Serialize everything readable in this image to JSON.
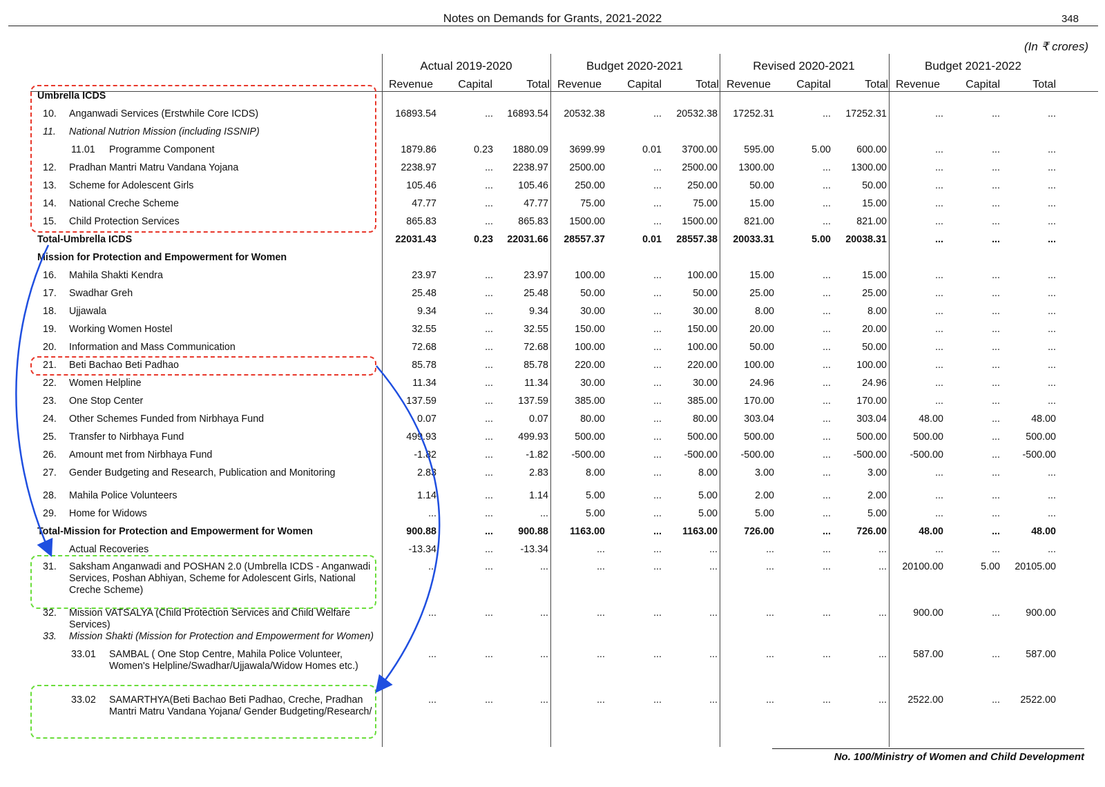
{
  "header": {
    "title": "Notes on Demands for Grants, 2021-2022",
    "page_number": "348",
    "units": "(In ₹ crores)"
  },
  "column_groups": [
    "Actual 2019-2020",
    "Budget 2020-2021",
    "Revised 2020-2021",
    "Budget 2021-2022"
  ],
  "sub_headers": [
    "Revenue",
    "Capital",
    "Total"
  ],
  "rows": [
    {
      "type": "section",
      "label": "Umbrella ICDS",
      "values": []
    },
    {
      "type": "item",
      "num": "10.",
      "label": "Anganwadi Services (Erstwhile Core ICDS)",
      "values": [
        "16893.54",
        "...",
        "16893.54",
        "20532.38",
        "...",
        "20532.38",
        "17252.31",
        "...",
        "17252.31",
        "...",
        "...",
        "..."
      ]
    },
    {
      "type": "item italic",
      "num": "11.",
      "label": "National Nutrion Mission (including ISSNIP)",
      "values": []
    },
    {
      "type": "sub",
      "num": "11.01",
      "label": "Programme Component",
      "values": [
        "1879.86",
        "0.23",
        "1880.09",
        "3699.99",
        "0.01",
        "3700.00",
        "595.00",
        "5.00",
        "600.00",
        "...",
        "...",
        "..."
      ]
    },
    {
      "type": "item",
      "num": "12.",
      "label": "Pradhan Mantri Matru Vandana Yojana",
      "values": [
        "2238.97",
        "...",
        "2238.97",
        "2500.00",
        "...",
        "2500.00",
        "1300.00",
        "...",
        "1300.00",
        "...",
        "...",
        "..."
      ]
    },
    {
      "type": "item",
      "num": "13.",
      "label": "Scheme for Adolescent Girls",
      "values": [
        "105.46",
        "...",
        "105.46",
        "250.00",
        "...",
        "250.00",
        "50.00",
        "...",
        "50.00",
        "...",
        "...",
        "..."
      ]
    },
    {
      "type": "item",
      "num": "14.",
      "label": "National Creche Scheme",
      "values": [
        "47.77",
        "...",
        "47.77",
        "75.00",
        "...",
        "75.00",
        "15.00",
        "...",
        "15.00",
        "...",
        "...",
        "..."
      ]
    },
    {
      "type": "item",
      "num": "15.",
      "label": "Child Protection Services",
      "values": [
        "865.83",
        "...",
        "865.83",
        "1500.00",
        "...",
        "1500.00",
        "821.00",
        "...",
        "821.00",
        "...",
        "...",
        "..."
      ]
    },
    {
      "type": "total",
      "label": "Total-Umbrella ICDS",
      "values": [
        "22031.43",
        "0.23",
        "22031.66",
        "28557.37",
        "0.01",
        "28557.38",
        "20033.31",
        "5.00",
        "20038.31",
        "...",
        "...",
        "..."
      ]
    },
    {
      "type": "section",
      "label": "Mission for Protection and Empowerment  for Women",
      "values": []
    },
    {
      "type": "item",
      "num": "16.",
      "label": "Mahila Shakti Kendra",
      "values": [
        "23.97",
        "...",
        "23.97",
        "100.00",
        "...",
        "100.00",
        "15.00",
        "...",
        "15.00",
        "...",
        "...",
        "..."
      ]
    },
    {
      "type": "item",
      "num": "17.",
      "label": "Swadhar Greh",
      "values": [
        "25.48",
        "...",
        "25.48",
        "50.00",
        "...",
        "50.00",
        "25.00",
        "...",
        "25.00",
        "...",
        "...",
        "..."
      ]
    },
    {
      "type": "item",
      "num": "18.",
      "label": "Ujjawala",
      "values": [
        "9.34",
        "...",
        "9.34",
        "30.00",
        "...",
        "30.00",
        "8.00",
        "...",
        "8.00",
        "...",
        "...",
        "..."
      ]
    },
    {
      "type": "item",
      "num": "19.",
      "label": "Working Women Hostel",
      "values": [
        "32.55",
        "...",
        "32.55",
        "150.00",
        "...",
        "150.00",
        "20.00",
        "...",
        "20.00",
        "...",
        "...",
        "..."
      ]
    },
    {
      "type": "item",
      "num": "20.",
      "label": "Information and Mass Communication",
      "values": [
        "72.68",
        "...",
        "72.68",
        "100.00",
        "...",
        "100.00",
        "50.00",
        "...",
        "50.00",
        "...",
        "...",
        "..."
      ]
    },
    {
      "type": "item",
      "num": "21.",
      "label": "Beti Bachao Beti Padhao",
      "values": [
        "85.78",
        "...",
        "85.78",
        "220.00",
        "...",
        "220.00",
        "100.00",
        "...",
        "100.00",
        "...",
        "...",
        "..."
      ]
    },
    {
      "type": "item",
      "num": "22.",
      "label": "Women Helpline",
      "values": [
        "11.34",
        "...",
        "11.34",
        "30.00",
        "...",
        "30.00",
        "24.96",
        "...",
        "24.96",
        "...",
        "...",
        "..."
      ]
    },
    {
      "type": "item",
      "num": "23.",
      "label": "One Stop Center",
      "values": [
        "137.59",
        "...",
        "137.59",
        "385.00",
        "...",
        "385.00",
        "170.00",
        "...",
        "170.00",
        "...",
        "...",
        "..."
      ]
    },
    {
      "type": "item",
      "num": "24.",
      "label": "Other Schemes Funded from Nirbhaya Fund",
      "values": [
        "0.07",
        "...",
        "0.07",
        "80.00",
        "...",
        "80.00",
        "303.04",
        "...",
        "303.04",
        "48.00",
        "...",
        "48.00"
      ]
    },
    {
      "type": "item",
      "num": "25.",
      "label": "Transfer to Nirbhaya Fund",
      "values": [
        "499.93",
        "...",
        "499.93",
        "500.00",
        "...",
        "500.00",
        "500.00",
        "...",
        "500.00",
        "500.00",
        "...",
        "500.00"
      ]
    },
    {
      "type": "item",
      "num": "26.",
      "label": "Amount met from Nirbhaya Fund",
      "values": [
        "-1.82",
        "...",
        "-1.82",
        "-500.00",
        "...",
        "-500.00",
        "-500.00",
        "...",
        "-500.00",
        "-500.00",
        "...",
        "-500.00"
      ]
    },
    {
      "type": "item",
      "num": "27.",
      "label": "Gender Budgeting and Research, Publication and Monitoring",
      "values": [
        "2.83",
        "...",
        "2.83",
        "8.00",
        "...",
        "8.00",
        "3.00",
        "...",
        "3.00",
        "...",
        "...",
        "..."
      ]
    },
    {
      "type": "item",
      "num": "28.",
      "label": "Mahila Police Volunteers",
      "values": [
        "1.14",
        "...",
        "1.14",
        "5.00",
        "...",
        "5.00",
        "2.00",
        "...",
        "2.00",
        "...",
        "...",
        "..."
      ]
    },
    {
      "type": "item",
      "num": "29.",
      "label": "Home for Widows",
      "values": [
        "...",
        "...",
        "...",
        "5.00",
        "...",
        "5.00",
        "5.00",
        "...",
        "5.00",
        "...",
        "...",
        "..."
      ]
    },
    {
      "type": "total",
      "label": "Total-Mission for Protection and Empowerment  for Women",
      "values": [
        "900.88",
        "...",
        "900.88",
        "1163.00",
        "...",
        "1163.00",
        "726.00",
        "...",
        "726.00",
        "48.00",
        "...",
        "48.00"
      ]
    },
    {
      "type": "item",
      "num": "",
      "label": "Actual Recoveries",
      "values": [
        "-13.34",
        "...",
        "-13.34",
        "...",
        "...",
        "...",
        "...",
        "...",
        "...",
        "...",
        "...",
        "..."
      ]
    },
    {
      "type": "item",
      "num": "31.",
      "label": "Saksham Anganwadi and POSHAN 2.0 (Umbrella ICDS - Anganwadi Services, Poshan Abhiyan, Scheme for Adolescent Girls, National Creche Scheme)",
      "values": [
        "...",
        "...",
        "...",
        "...",
        "...",
        "...",
        "...",
        "...",
        "...",
        "20100.00",
        "5.00",
        "20105.00"
      ]
    },
    {
      "type": "item",
      "num": "32.",
      "label": "Mission VATSALYA (Child Protection Services and Child Welfare Services)",
      "values": [
        "...",
        "...",
        "...",
        "...",
        "...",
        "...",
        "...",
        "...",
        "...",
        "900.00",
        "...",
        "900.00"
      ]
    },
    {
      "type": "item italic",
      "num": "33.",
      "label": "Mission Shakti (Mission for Protection and Empowerment for Women)",
      "values": []
    },
    {
      "type": "sub",
      "num": "33.01",
      "label": "SAMBAL ( One Stop Centre, Mahila Police Volunteer, Women's Helpline/Swadhar/Ujjawala/Widow Homes etc.)",
      "values": [
        "...",
        "...",
        "...",
        "...",
        "...",
        "...",
        "...",
        "...",
        "...",
        "587.00",
        "...",
        "587.00"
      ]
    },
    {
      "type": "sub",
      "num": "33.02",
      "label": "SAMARTHYA(Beti Bachao Beti Padhao, Creche, Pradhan Mantri Matru Vandana Yojana/ Gender Budgeting/Research/",
      "values": [
        "...",
        "...",
        "...",
        "...",
        "...",
        "...",
        "...",
        "...",
        "...",
        "2522.00",
        "...",
        "2522.00"
      ]
    }
  ],
  "footer": "No. 100/Ministry of Women and Child Development",
  "annotation_colors": {
    "red_box": "#e8372a",
    "green_box": "#69dd3a",
    "arrow": "#1f4fe0"
  }
}
